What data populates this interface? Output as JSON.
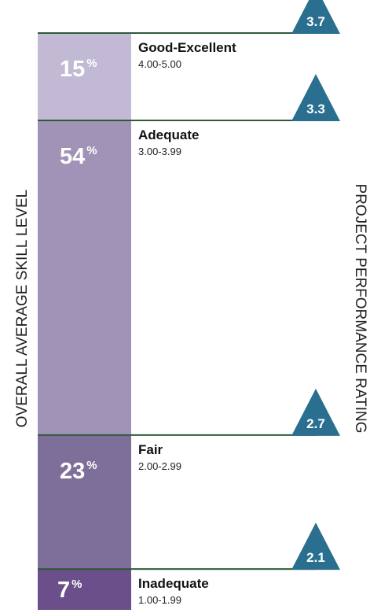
{
  "chart_data": {
    "type": "bar",
    "stacked": true,
    "ylabel": "OVERALL AVERAGE SKILL  LEVEL",
    "y2label": "PROJECT PERFORMANCE RATING",
    "percent_symbol": "%",
    "categories": [
      "Good-Excellent",
      "Adequate",
      "Fair",
      "Inadequate"
    ],
    "ranges": [
      "4.00-5.00",
      "3.00-3.99",
      "2.00-2.99",
      "1.00-1.99"
    ],
    "values": [
      15,
      54,
      23,
      7
    ],
    "ratings": [
      "3.7",
      "3.3",
      "2.7",
      "2.1"
    ],
    "colors": {
      "segments": [
        "#c2b9d4",
        "#a193b8",
        "#7e6e9a",
        "#6a4f8a"
      ],
      "lines": "#2e5a3a",
      "markers": "#2a6f8f"
    }
  }
}
